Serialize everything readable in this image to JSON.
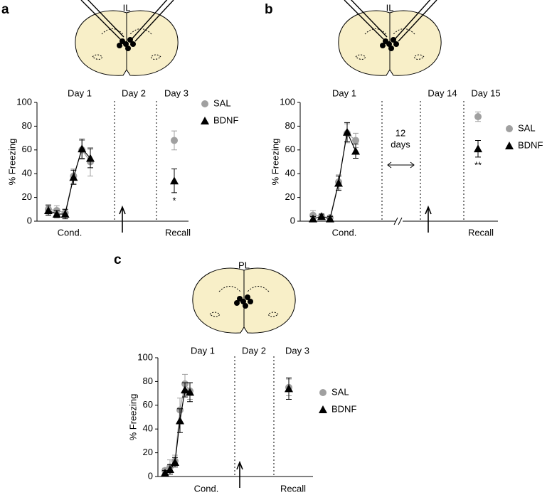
{
  "chart_data": [
    {
      "type": "line",
      "panel": "a",
      "region": "IL",
      "day_labels": [
        "Day 1",
        "Day 2",
        "Day 3"
      ],
      "ylabel": "% Freezing",
      "ylim": [
        0,
        100
      ],
      "yticks": [
        0,
        20,
        40,
        60,
        80,
        100
      ],
      "xlabels": [
        "Cond.",
        "Recall"
      ],
      "significance": "*",
      "series": [
        {
          "name": "SAL",
          "color": "#a0a0a0",
          "marker": "circle",
          "values": [
            10,
            9,
            7,
            38,
            60,
            50
          ],
          "errors": [
            4,
            4,
            3,
            6,
            8,
            12
          ],
          "recall": 68,
          "recall_error": 8
        },
        {
          "name": "BDNF",
          "color": "#000000",
          "marker": "triangle",
          "values": [
            9,
            6,
            6,
            37,
            61,
            53
          ],
          "errors": [
            4,
            3,
            4,
            6,
            8,
            8
          ],
          "recall": 34,
          "recall_error": 10
        }
      ]
    },
    {
      "type": "line",
      "panel": "b",
      "region": "IL",
      "day_labels": [
        "Day 1",
        "Day 14",
        "Day 15"
      ],
      "ylabel": "% Freezing",
      "ylim": [
        0,
        100
      ],
      "yticks": [
        0,
        20,
        40,
        60,
        80,
        100
      ],
      "xlabels": [
        "Cond.",
        "Recall"
      ],
      "significance": "**",
      "gap_label": [
        "12",
        "days"
      ],
      "series": [
        {
          "name": "SAL",
          "color": "#a0a0a0",
          "marker": "circle",
          "values": [
            5,
            4,
            3,
            33,
            74,
            68
          ],
          "errors": [
            4,
            2,
            2,
            6,
            8,
            6
          ],
          "recall": 88,
          "recall_error": 4
        },
        {
          "name": "BDNF",
          "color": "#000000",
          "marker": "triangle",
          "values": [
            2,
            4,
            2,
            32,
            75,
            59
          ],
          "errors": [
            2,
            2,
            2,
            6,
            8,
            6
          ],
          "recall": 61,
          "recall_error": 7
        }
      ]
    },
    {
      "type": "line",
      "panel": "c",
      "region": "PL",
      "day_labels": [
        "Day 1",
        "Day 2",
        "Day 3"
      ],
      "ylabel": "% Freezing",
      "ylim": [
        0,
        100
      ],
      "yticks": [
        0,
        20,
        40,
        60,
        80,
        100
      ],
      "xlabels": [
        "Cond.",
        "Recall"
      ],
      "series": [
        {
          "name": "SAL",
          "color": "#a0a0a0",
          "marker": "circle",
          "values": [
            5,
            8,
            13,
            56,
            78,
            72
          ],
          "errors": [
            2,
            6,
            5,
            10,
            8,
            7
          ],
          "recall": 75,
          "recall_error": 7
        },
        {
          "name": "BDNF",
          "color": "#000000",
          "marker": "triangle",
          "values": [
            3,
            6,
            12,
            47,
            73,
            71
          ],
          "errors": [
            2,
            4,
            4,
            10,
            6,
            8
          ],
          "recall": 74,
          "recall_error": 9
        }
      ]
    }
  ]
}
